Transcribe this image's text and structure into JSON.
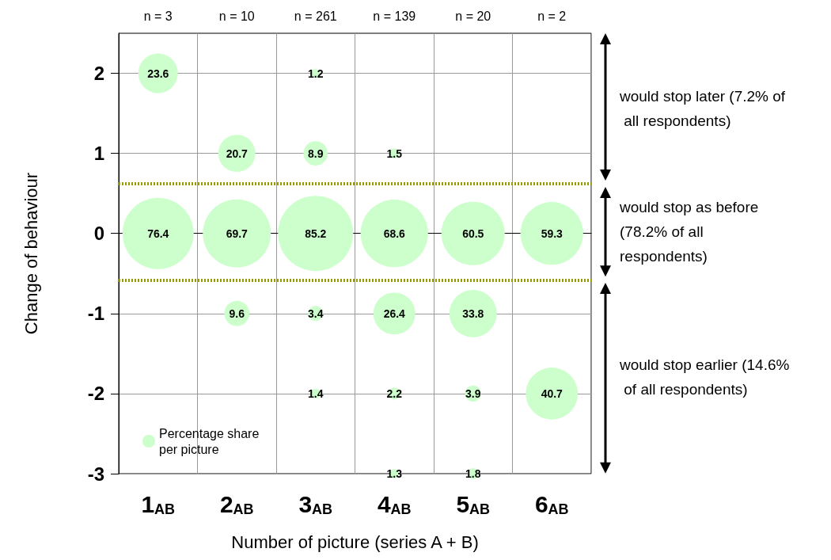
{
  "chart_data": {
    "type": "bubble",
    "xlabel": "Number of picture (series A + B)",
    "ylabel": "Change of behaviour",
    "categories": [
      "1$_{AB}$",
      "2$_{AB}$",
      "3$_{AB}$",
      "4$_{AB}$",
      "5$_{AB}$",
      "6$_{AB}$"
    ],
    "series": [
      {
        "name": "Percentage share per picture",
        "color": "#ccffcc",
        "x": [
          "1$_{AB}$",
          "1$_{AB}$",
          "2$_{AB}$",
          "2$_{AB}$",
          "2$_{AB}$",
          "3$_{AB}$",
          "3$_{AB}$",
          "3$_{AB}$",
          "3$_{AB}$",
          "3$_{AB}$",
          "4$_{AB}$",
          "4$_{AB}$",
          "4$_{AB}$",
          "4$_{AB}$",
          "4$_{AB}$",
          "5$_{AB}$",
          "5$_{AB}$",
          "5$_{AB}$",
          "5$_{AB}$",
          "6$_{AB}$",
          "6$_{AB}$"
        ],
        "values": [
          2,
          0,
          1,
          0,
          -1,
          2,
          1,
          0,
          -1,
          -2,
          1,
          0,
          -1,
          -2,
          -3,
          0,
          -1,
          -2,
          -3,
          0,
          -2
        ],
        "sizes": [
          23.6,
          76.4,
          20.7,
          69.7,
          9.6,
          1.2,
          8.9,
          85.2,
          3.4,
          1.4,
          1.5,
          68.6,
          26.4,
          2.2,
          1.3,
          60.5,
          33.8,
          3.9,
          1.8,
          59.3,
          40.7
        ],
        "value_labels": [
          "23.6",
          "76.4",
          "20.7",
          "69.7",
          "9.6",
          "1.2",
          "8.9",
          "85.2",
          "3.4",
          "1.4",
          "1.5",
          "68.6",
          "26.4",
          "2.2",
          "1.3",
          "60.5",
          "33.8",
          "3.9",
          "1.8",
          "59.3",
          "40.7"
        ]
      }
    ],
    "ylim": [
      -3,
      2.5
    ],
    "yticks": [
      -3,
      -2,
      -1,
      0,
      1,
      2
    ],
    "grid": true,
    "legend": "bottom left",
    "ref_lines": [
      {
        "axis": "y",
        "value": 0.62,
        "color": "#999900",
        "line_style": "dotted"
      },
      {
        "axis": "y",
        "value": -0.58,
        "color": "#999900",
        "line_style": "dotted"
      }
    ],
    "annotations": [
      "n = 3",
      "n = 10",
      "n = 261",
      "n = 139",
      "n = 20",
      "n = 2",
      "would stop later (7.2% of all respondents)",
      "would stop as before (78.2% of all respondents)",
      "would stop earlier (14.6% of all respondents)"
    ]
  }
}
